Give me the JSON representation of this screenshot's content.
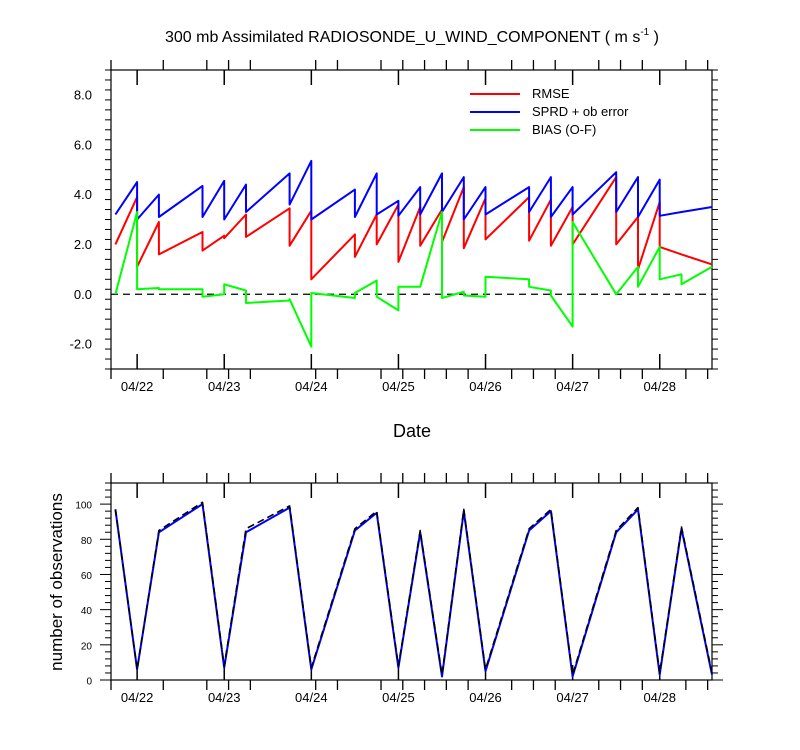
{
  "chart_data": [
    {
      "type": "line",
      "title": "300 mb Assimilated RADIOSONDE_U_WIND_COMPONENT ( m s",
      "title_sup": "-1",
      "title_end": " )",
      "xlabel": "Date",
      "ylabel": "",
      "xlim": [
        -0.05,
        6.85
      ],
      "ylim": [
        -3.0,
        9.0
      ],
      "yticks": [
        -2.0,
        0.0,
        2.0,
        4.0,
        6.0,
        8.0
      ],
      "ytick_labels": [
        "-2.0",
        "0.0",
        "2.0",
        "4.0",
        "6.0",
        "8.0"
      ],
      "xticks": [
        0.25,
        1.25,
        2.25,
        3.25,
        4.25,
        5.25,
        6.25
      ],
      "xtick_labels": [
        "04/22",
        "04/23",
        "04/24",
        "04/25",
        "04/26",
        "04/27",
        "04/28"
      ],
      "minor_xticks": [
        -0.05,
        0.55,
        1.05,
        1.3,
        1.55,
        2.3,
        2.55,
        3.05,
        3.3,
        3.55,
        3.8,
        4.05,
        4.55,
        4.8,
        5.05,
        5.55,
        5.8,
        6.05,
        6.55,
        6.8
      ],
      "hline": 0.0,
      "legend": [
        "RMSE",
        "SPRD + ob error",
        "BIAS (O-F)"
      ],
      "series": [
        {
          "name": "RMSE",
          "color": "#ff0000",
          "x": [
            0,
            0.25,
            0.25,
            0.5,
            0.5,
            1.0,
            1.0,
            1.25,
            1.25,
            1.5,
            1.5,
            2.0,
            2.0,
            2.25,
            2.25,
            2.75,
            2.75,
            3.0,
            3.0,
            3.25,
            3.25,
            3.5,
            3.5,
            3.75,
            3.75,
            4.0,
            4.0,
            4.25,
            4.25,
            4.75,
            4.75,
            5.0,
            5.0,
            5.25,
            5.25,
            5.75,
            5.75,
            6.0,
            6.0,
            6.25,
            6.25,
            6.5,
            6.5,
            6.85
          ],
          "y": [
            2.0,
            3.9,
            1.1,
            2.9,
            1.6,
            2.5,
            1.75,
            2.35,
            2.25,
            3.2,
            2.3,
            3.45,
            1.95,
            3.35,
            0.6,
            2.4,
            1.5,
            3.2,
            2.0,
            3.6,
            1.3,
            3.5,
            1.95,
            3.4,
            2.1,
            4.3,
            1.85,
            3.85,
            2.2,
            3.9,
            2.15,
            3.8,
            1.95,
            3.5,
            2.0,
            4.7,
            2.0,
            3.1,
            1.0,
            3.7,
            1.9,
            1.6,
            1.6,
            1.2
          ]
        },
        {
          "name": "SPRD + ob error",
          "color": "#0000ff",
          "x": [
            0,
            0.25,
            0.25,
            0.5,
            0.5,
            1.0,
            1.0,
            1.25,
            1.25,
            1.5,
            1.5,
            2.0,
            2.0,
            2.25,
            2.25,
            2.75,
            2.75,
            3.0,
            3.0,
            3.25,
            3.25,
            3.5,
            3.5,
            3.75,
            3.75,
            4.0,
            4.0,
            4.25,
            4.25,
            4.75,
            4.75,
            5.0,
            5.0,
            5.25,
            5.25,
            5.75,
            5.75,
            6.0,
            6.0,
            6.25,
            6.25,
            6.5,
            6.5,
            6.85
          ],
          "y": [
            3.2,
            4.5,
            3.0,
            4.0,
            3.1,
            4.35,
            3.1,
            4.55,
            3.0,
            4.4,
            3.3,
            4.85,
            3.6,
            5.35,
            3.0,
            4.2,
            3.1,
            4.85,
            3.2,
            3.75,
            3.15,
            4.3,
            3.2,
            4.85,
            3.3,
            4.7,
            3.0,
            4.3,
            3.2,
            4.3,
            3.3,
            4.7,
            3.1,
            4.3,
            3.2,
            4.9,
            3.3,
            4.7,
            3.1,
            4.6,
            3.15,
            3.3,
            3.3,
            3.5
          ]
        },
        {
          "name": "BIAS (O-F)",
          "color": "#00ff00",
          "x": [
            0,
            0.25,
            0.25,
            0.5,
            0.5,
            1.0,
            1.0,
            1.25,
            1.25,
            1.5,
            1.5,
            2.0,
            2.0,
            2.25,
            2.25,
            2.75,
            2.75,
            3.0,
            3.0,
            3.25,
            3.25,
            3.5,
            3.5,
            3.75,
            3.75,
            4.0,
            4.0,
            4.25,
            4.25,
            4.75,
            4.75,
            5.0,
            5.0,
            5.25,
            5.25,
            5.75,
            5.75,
            6.0,
            6.0,
            6.25,
            6.25,
            6.5,
            6.5,
            6.85
          ],
          "y": [
            0.0,
            3.3,
            0.2,
            0.25,
            0.2,
            0.2,
            -0.1,
            0.0,
            0.4,
            0.15,
            -0.35,
            -0.25,
            -0.2,
            -2.1,
            0.05,
            -0.15,
            0.05,
            0.55,
            -0.1,
            -0.65,
            0.3,
            0.3,
            0.3,
            3.3,
            -0.15,
            0.1,
            -0.05,
            -0.1,
            0.7,
            0.6,
            0.3,
            0.15,
            -0.05,
            -1.3,
            2.9,
            0.0,
            0.0,
            1.1,
            0.3,
            1.9,
            0.6,
            0.8,
            0.4,
            1.1
          ]
        }
      ]
    },
    {
      "type": "line",
      "title": "",
      "xlabel": "",
      "ylabel": "number of observations",
      "xlim": [
        -0.05,
        6.85
      ],
      "ylim": [
        0,
        112
      ],
      "yticks": [
        0,
        20,
        40,
        60,
        80,
        100
      ],
      "ytick_labels": [
        "0",
        "20",
        "40",
        "60",
        "80",
        "100"
      ],
      "xticks": [
        0.25,
        1.25,
        2.25,
        3.25,
        4.25,
        5.25,
        6.25
      ],
      "xtick_labels": [
        "04/22",
        "04/23",
        "04/24",
        "04/25",
        "04/26",
        "04/27",
        "04/28"
      ],
      "minor_xticks": [
        -0.05,
        0.55,
        1.05,
        1.3,
        1.55,
        2.3,
        2.55,
        3.05,
        3.3,
        3.55,
        3.8,
        4.05,
        4.55,
        4.8,
        5.05,
        5.55,
        5.8,
        6.05,
        6.55,
        6.8
      ],
      "series": [
        {
          "name": "observations",
          "color": "#0000ff",
          "style": "solid",
          "x": [
            0,
            0.25,
            0.5,
            1.0,
            1.25,
            1.5,
            2.0,
            2.25,
            2.75,
            3.0,
            3.25,
            3.5,
            3.75,
            4.0,
            4.25,
            4.75,
            5.0,
            5.25,
            5.75,
            6.0,
            6.25,
            6.5,
            6.85
          ],
          "y": [
            97,
            6,
            84,
            100,
            7,
            84,
            98,
            6,
            85,
            95,
            7,
            84,
            2,
            96,
            5,
            85,
            96,
            2,
            84,
            97,
            3,
            86,
            3
          ]
        },
        {
          "name": "observations (dashed)",
          "color": "#000000",
          "style": "dashed",
          "x": [
            0,
            0.25,
            0.5,
            1.0,
            1.25,
            1.5,
            2.0,
            2.25,
            2.75,
            3.0,
            3.25,
            3.5,
            3.75,
            4.0,
            4.25,
            4.75,
            5.0,
            5.25,
            5.75,
            6.0,
            6.25,
            6.5,
            6.85
          ],
          "y": [
            97,
            6,
            85,
            101,
            8,
            86,
            99,
            7,
            86,
            96,
            8,
            85,
            3,
            97,
            6,
            86,
            97,
            3,
            85,
            98,
            4,
            87,
            4
          ]
        }
      ]
    }
  ]
}
